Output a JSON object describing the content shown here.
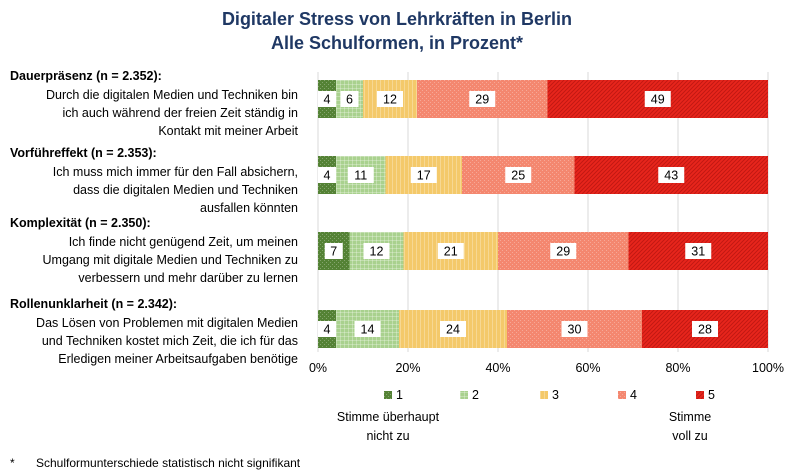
{
  "chart_data": {
    "type": "bar",
    "orientation": "horizontal",
    "stacked": true,
    "title": "Digitaler Stress von Lehrkräften in Berlin",
    "subtitle": "Alle Schulformen, in Prozent*",
    "categories": [
      {
        "heading": "Dauerpräsenz (n = 2.352):",
        "description": [
          "Durch die digitalen Medien und Techniken bin",
          "ich auch während der freien Zeit ständig in",
          "Kontakt mit meiner Arbeit"
        ]
      },
      {
        "heading": "Vorführeffekt (n = 2.353):",
        "description": [
          "Ich muss mich immer für den Fall absichern,",
          "dass die digitalen Medien und Techniken",
          "ausfallen könnten"
        ]
      },
      {
        "heading": "Komplexität (n = 2.350):",
        "description": [
          "Ich finde nicht genügend Zeit, um meinen",
          "Umgang mit digitale Medien und Techniken zu",
          "verbessern und mehr darüber zu lernen"
        ]
      },
      {
        "heading": "Rollenunklarheit (n = 2.342):",
        "description": [
          "Das Lösen von Problemen mit digitalen Medien",
          "und Techniken kostet mich Zeit, die ich für das",
          "Erledigen meiner Arbeitsaufgaben benötige"
        ]
      }
    ],
    "series": [
      {
        "name": "1",
        "color": "#548235",
        "values": [
          4,
          4,
          7,
          4
        ]
      },
      {
        "name": "2",
        "color": "#a9d18e",
        "values": [
          6,
          11,
          12,
          14
        ]
      },
      {
        "name": "3",
        "color": "#f4c96a",
        "values": [
          12,
          17,
          21,
          24
        ]
      },
      {
        "name": "4",
        "color": "#f4876f",
        "values": [
          29,
          25,
          29,
          30
        ]
      },
      {
        "name": "5",
        "color": "#e8251c",
        "values": [
          49,
          43,
          31,
          28
        ]
      }
    ],
    "xlim": [
      0,
      100
    ],
    "x_ticks": [
      "0%",
      "20%",
      "40%",
      "60%",
      "80%",
      "100%"
    ],
    "grid": true,
    "legend_position": "bottom",
    "scale_anchors": {
      "low": [
        "Stimme überhaupt",
        "nicht zu"
      ],
      "high": [
        "Stimme",
        "voll zu"
      ]
    }
  },
  "footnote": {
    "marker": "*",
    "text": "Schulformunterschiede  statistisch nicht signifikant"
  }
}
